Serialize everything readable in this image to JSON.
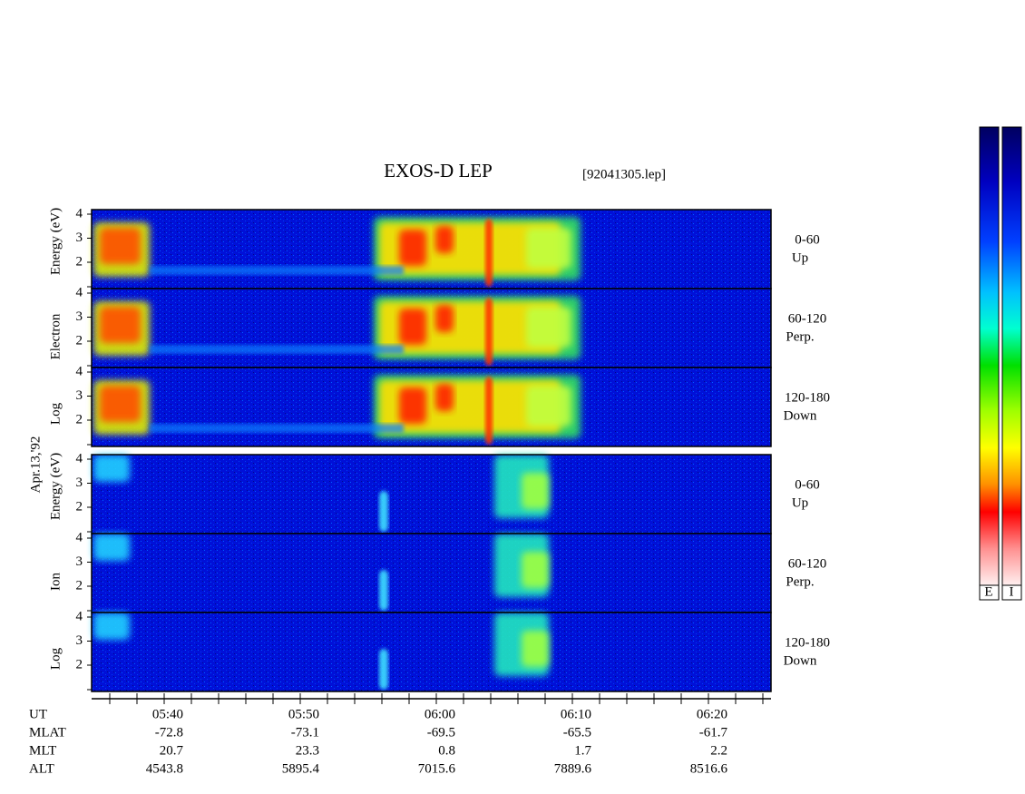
{
  "title": "EXOS-D LEP",
  "file": "[92041305.lep]",
  "date": "Apr.13,'92",
  "electron": {
    "axis_label": [
      "Log",
      "Electron",
      "Energy (eV)"
    ],
    "panels": [
      {
        "range": "0-60",
        "direction": "Up",
        "yticks": [
          "4",
          "3",
          "2"
        ]
      },
      {
        "range": "60-120",
        "direction": "Perp.",
        "yticks": [
          "4",
          "3",
          "2"
        ]
      },
      {
        "range": "120-180",
        "direction": "Down",
        "yticks": [
          "4",
          "3",
          "2"
        ]
      }
    ]
  },
  "ion": {
    "axis_label": [
      "Log",
      "Ion",
      "Energy (eV)"
    ],
    "panels": [
      {
        "range": "0-60",
        "direction": "Up",
        "yticks": [
          "4",
          "3",
          "2"
        ]
      },
      {
        "range": "60-120",
        "direction": "Perp.",
        "yticks": [
          "4",
          "3",
          "2"
        ]
      },
      {
        "range": "120-180",
        "direction": "Down",
        "yticks": [
          "4",
          "3",
          "2"
        ]
      }
    ]
  },
  "time_axis": {
    "row_labels": [
      "UT",
      "MLAT",
      "MLT",
      "ALT"
    ],
    "columns": [
      [
        "05:40",
        "-72.8",
        "20.7",
        "4543.8"
      ],
      [
        "05:50",
        "-73.1",
        "23.3",
        "5895.4"
      ],
      [
        "06:00",
        "-69.5",
        "0.8",
        "7015.6"
      ],
      [
        "06:10",
        "-65.5",
        "1.7",
        "7889.6"
      ],
      [
        "06:20",
        "-61.7",
        "2.2",
        "8516.6"
      ]
    ]
  },
  "colorbar_labels": [
    "E",
    "I"
  ]
}
